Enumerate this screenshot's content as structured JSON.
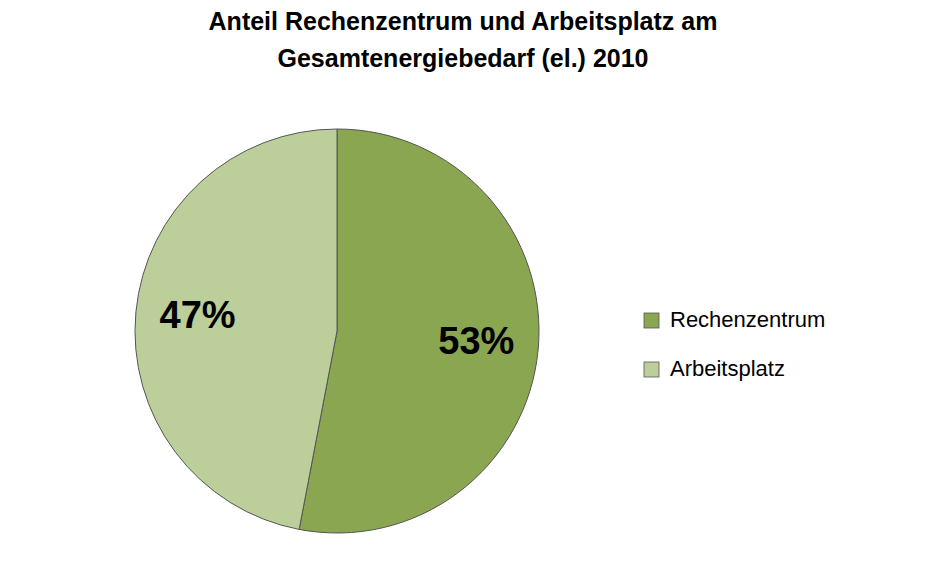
{
  "chart_data": {
    "type": "pie",
    "title": "Anteil Rechenzentrum und Arbeitsplatz am\nGesamtenergiebedarf  (el.) 2010",
    "categories": [
      "Rechenzentrum",
      "Arbeitsplatz"
    ],
    "values": [
      53,
      47
    ],
    "value_labels": [
      "53%",
      "47%"
    ],
    "colors": [
      "#8ba650",
      "#bccf9a"
    ],
    "data_labels": true,
    "legend": "right"
  }
}
